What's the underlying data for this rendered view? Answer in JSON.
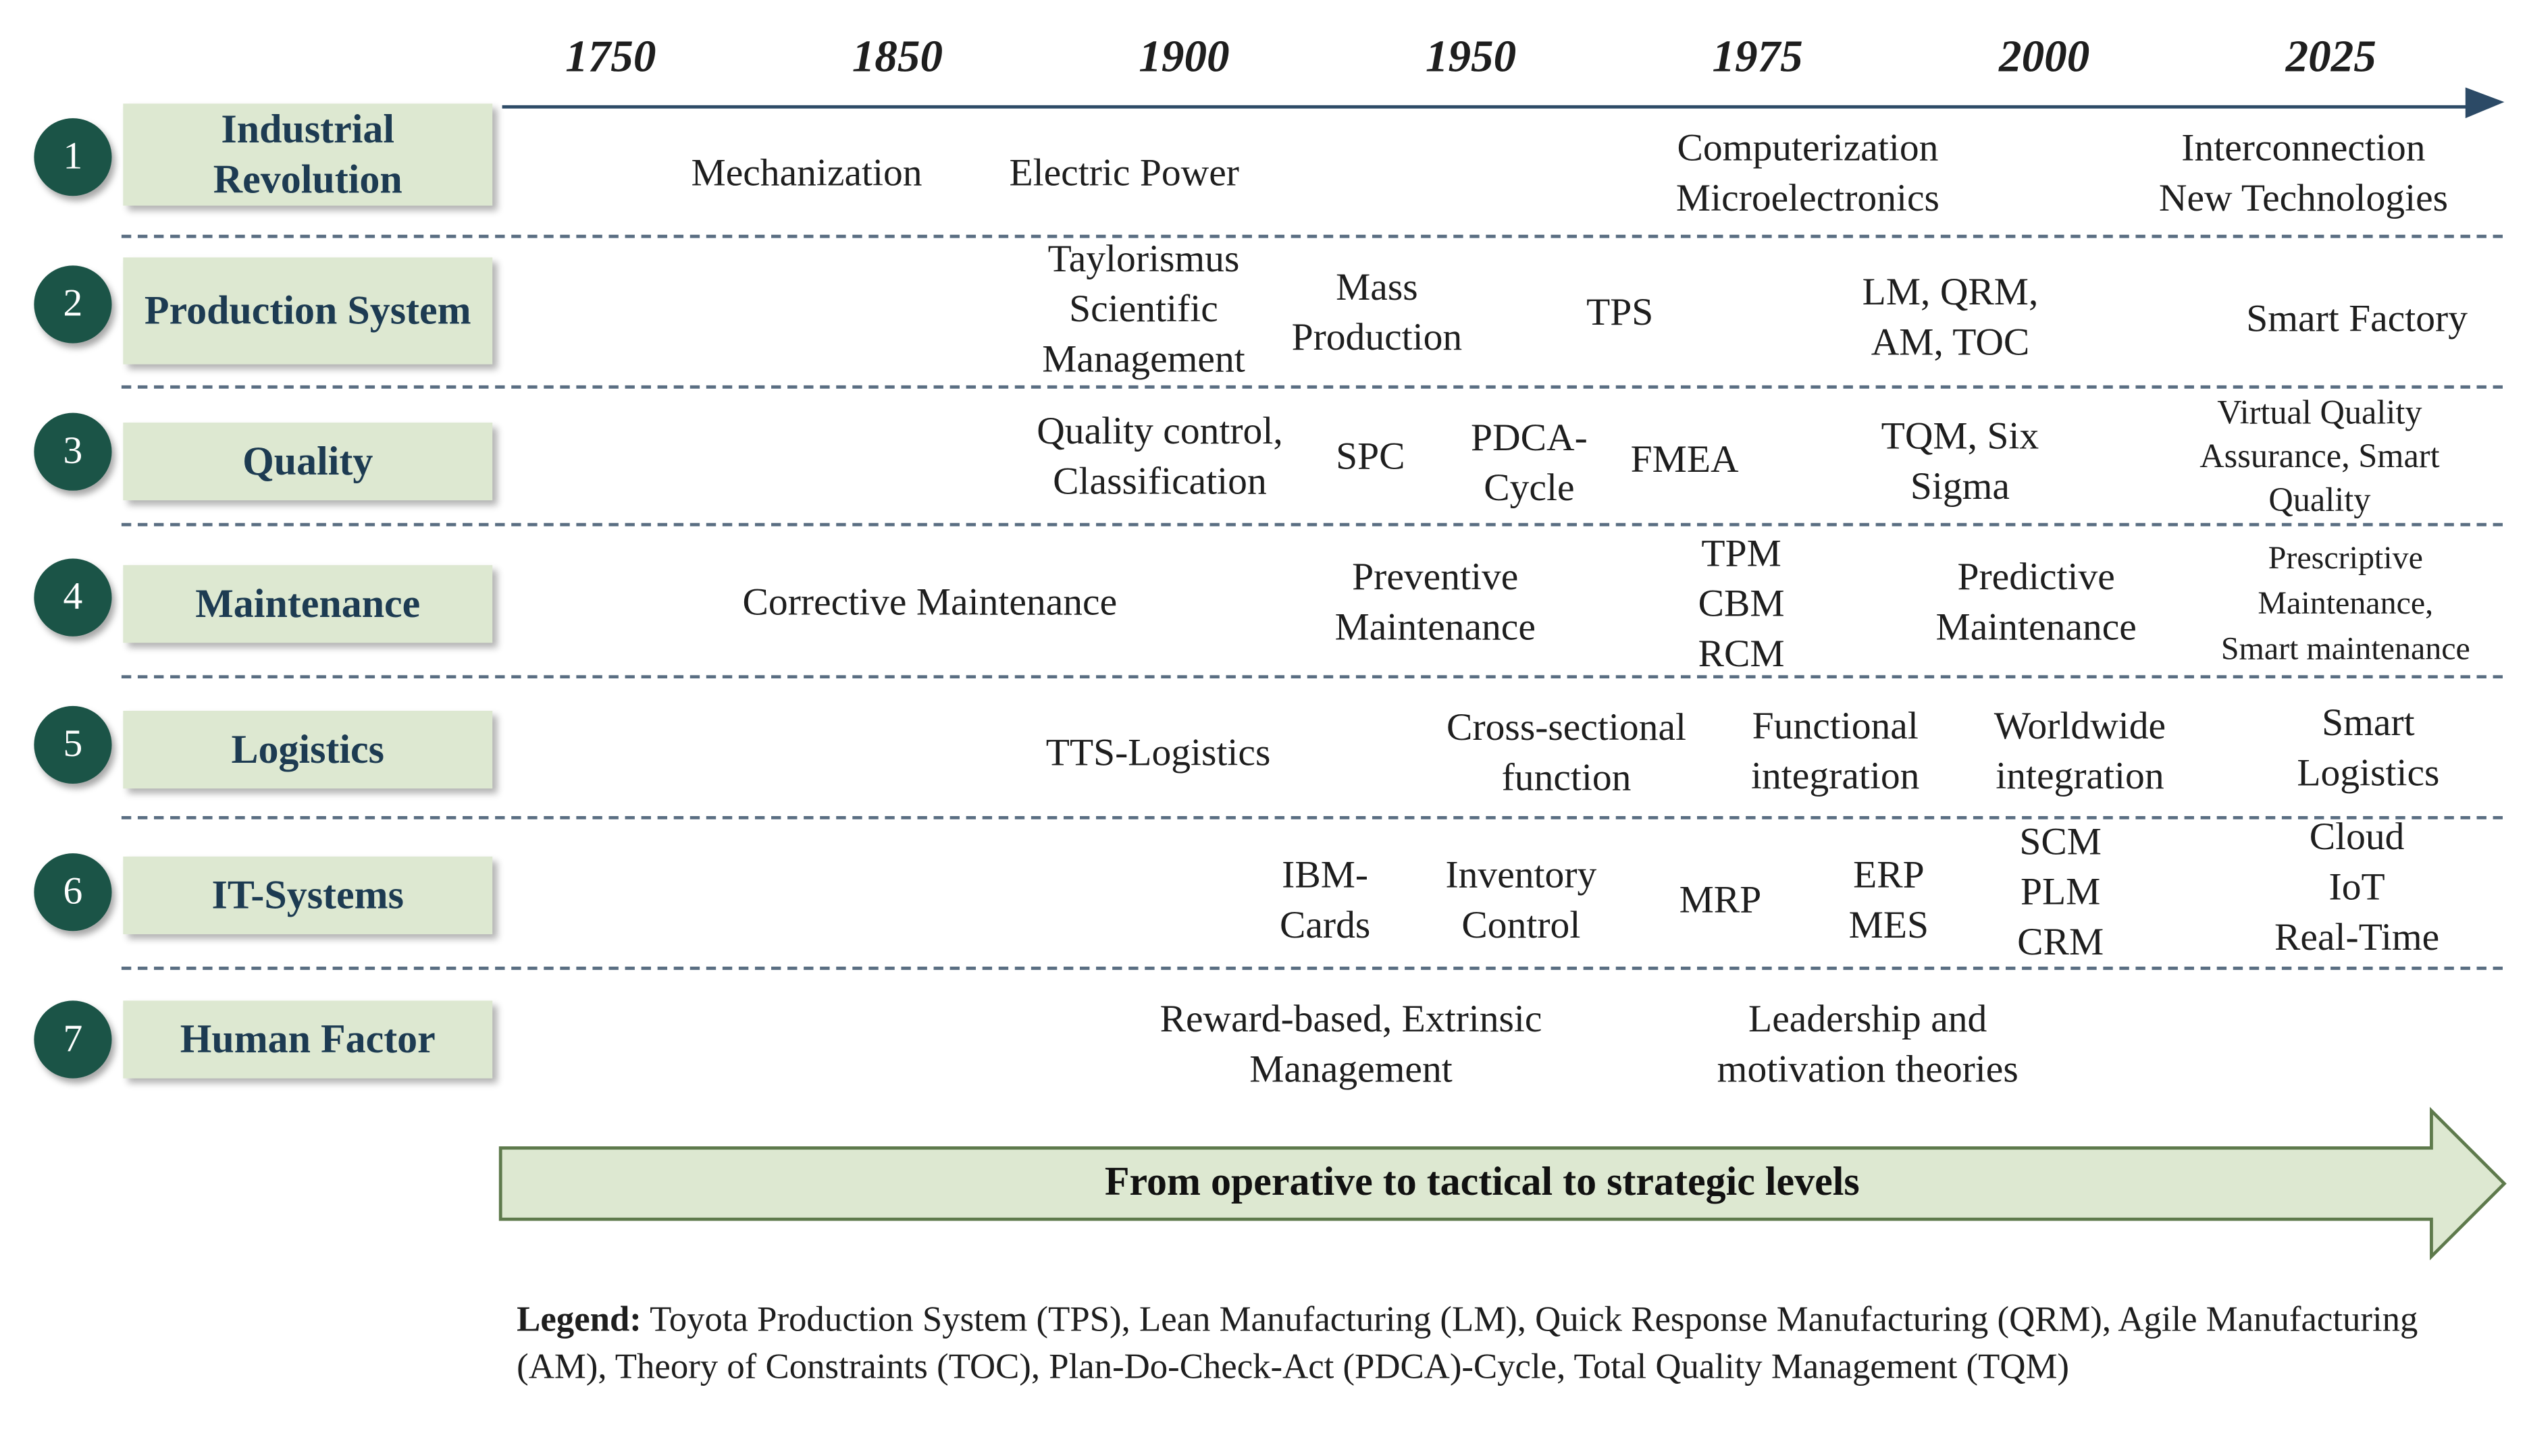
{
  "timeline": {
    "years": [
      "1750",
      "1850",
      "1900",
      "1950",
      "1975",
      "2000",
      "2025"
    ]
  },
  "rows": [
    {
      "number": "1",
      "label": "Industrial Revolution",
      "items": [
        "Mechanization",
        "Electric Power",
        "Computerization\nMicroelectronics",
        "Interconnection\nNew Technologies"
      ]
    },
    {
      "number": "2",
      "label": "Production System",
      "items": [
        "Taylorismus\nScientific\nManagement",
        "Mass\nProduction",
        "TPS",
        "LM, QRM,\nAM, TOC",
        "Smart Factory"
      ]
    },
    {
      "number": "3",
      "label": "Quality",
      "items": [
        "Quality control,\nClassification",
        "SPC",
        "PDCA-\nCycle",
        "FMEA",
        "TQM, Six\nSigma",
        "Virtual Quality\nAssurance, Smart\nQuality"
      ]
    },
    {
      "number": "4",
      "label": "Maintenance",
      "items": [
        "Corrective Maintenance",
        "Preventive\nMaintenance",
        "TPM\nCBM\nRCM",
        "Predictive\nMaintenance",
        "Prescriptive\nMaintenance,\nSmart maintenance"
      ]
    },
    {
      "number": "5",
      "label": "Logistics",
      "items": [
        "TTS-Logistics",
        "Cross-sectional\nfunction",
        "Functional\nintegration",
        "Worldwide\nintegration",
        "Smart\nLogistics"
      ]
    },
    {
      "number": "6",
      "label": "IT-Systems",
      "items": [
        "IBM-\nCards",
        "Inventory\nControl",
        "MRP",
        "ERP\nMES",
        "SCM\nPLM\nCRM",
        "Cloud\nIoT\nReal-Time"
      ]
    },
    {
      "number": "7",
      "label": "Human Factor",
      "items": [
        "Reward-based, Extrinsic\nManagement",
        "Leadership and\nmotivation theories"
      ]
    }
  ],
  "bottom_arrow": {
    "text": "From operative to tactical to strategic levels"
  },
  "legend": {
    "title": "Legend:",
    "text": "Toyota Production System (TPS), Lean Manufacturing (LM),  Quick Response Manufacturing (QRM), Agile Manufacturing (AM), Theory of Constraints (TOC), Plan-Do-Check-Act (PDCA)-Cycle, Total Quality Management (TQM)"
  },
  "colors": {
    "circle": "#1b5447",
    "label_box": "#dde8d1",
    "label_text": "#1d3b52",
    "axis": "#2c4a66",
    "divider": "#5a6e82",
    "arrow_fill": "#dde8d1",
    "arrow_stroke": "#5e7a4c"
  }
}
